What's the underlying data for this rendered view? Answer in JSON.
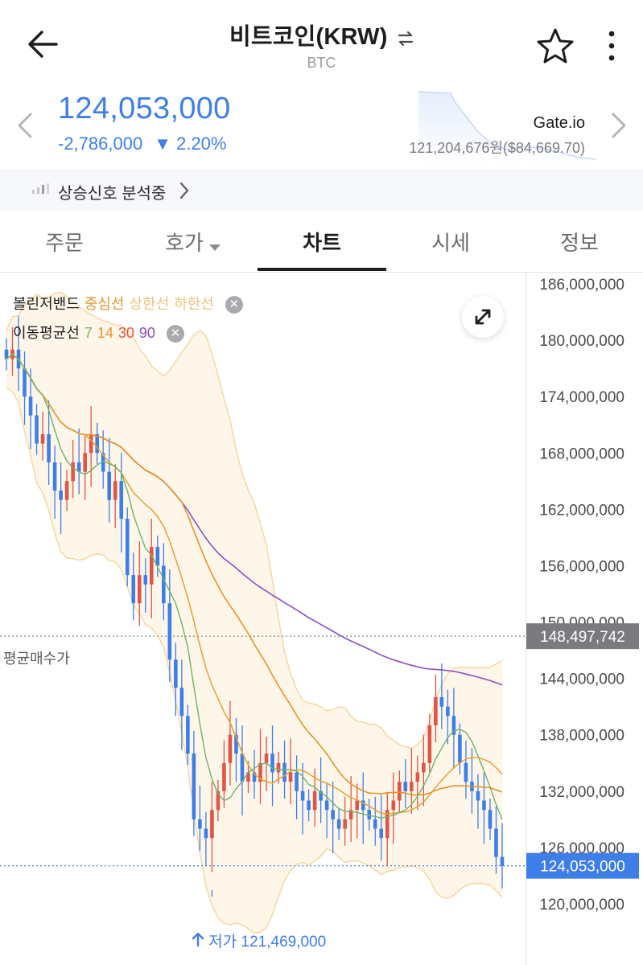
{
  "header": {
    "title": "비트코인(KRW)",
    "subtitle": "BTC"
  },
  "price": {
    "current": "124,053,000",
    "change": "-2,786,000",
    "change_pct": "▼ 2.20%",
    "exchange": "Gate.io",
    "exchange_price": "121,204,676원($84,669.70)"
  },
  "signal": {
    "label": "상승신호 분석중"
  },
  "tabs": [
    {
      "label": "주문"
    },
    {
      "label": "호가"
    },
    {
      "label": "차트"
    },
    {
      "label": "시세"
    },
    {
      "label": "정보"
    }
  ],
  "active_tab": "차트",
  "legend": {
    "bollinger": {
      "name": "볼린저밴드",
      "mid": "중심선",
      "upper": "상한선",
      "lower": "하한선"
    },
    "ma": {
      "name": "이동평균선",
      "periods": [
        "7",
        "14",
        "30",
        "90"
      ]
    }
  },
  "colors": {
    "up": "#e05545",
    "down": "#3d7ee8",
    "ma7": "#6bb46b",
    "ma14": "#e69426",
    "ma30": "#e69426",
    "ma90": "#8a4fc0",
    "band": "#f6d49a"
  },
  "avg_buy_label": "평균매수가",
  "low_label": "저가 121,469,000",
  "chart_data": {
    "type": "candlestick",
    "ylim": [
      118000000,
      188000000
    ],
    "y_ticks": [
      "186,000,000",
      "180,000,000",
      "174,000,000",
      "168,000,000",
      "162,000,000",
      "156,000,000",
      "150,000,000",
      "144,000,000",
      "138,000,000",
      "132,000,000",
      "126,000,000",
      "120,000,000"
    ],
    "avg_buy_price": 148497742,
    "avg_buy_tag": "148,497,742",
    "current_price": 124053000,
    "current_tag": "124,053,000",
    "low_price": 121469000,
    "closes": [
      178,
      179,
      177,
      174,
      172,
      169,
      170,
      167,
      164,
      163,
      165,
      167,
      166,
      168,
      170,
      168,
      166,
      163,
      165,
      161,
      155,
      152,
      155,
      154,
      158,
      156,
      152,
      146,
      143,
      140,
      136,
      129,
      128,
      127,
      130,
      132,
      135,
      138,
      136,
      133,
      134,
      133,
      135,
      136,
      134,
      135,
      133,
      134,
      132,
      131,
      130,
      132,
      131,
      130,
      129,
      128,
      129,
      130,
      131,
      130,
      129,
      128,
      127,
      130,
      131,
      133,
      132,
      133,
      134,
      135,
      139,
      142,
      141,
      140,
      138,
      135,
      133,
      132,
      131,
      130,
      128,
      125,
      124.05
    ]
  }
}
